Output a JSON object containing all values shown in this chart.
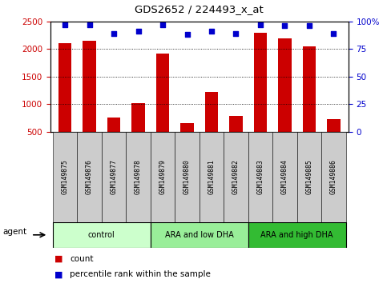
{
  "title": "GDS2652 / 224493_x_at",
  "samples": [
    "GSM149875",
    "GSM149876",
    "GSM149877",
    "GSM149878",
    "GSM149879",
    "GSM149880",
    "GSM149881",
    "GSM149882",
    "GSM149883",
    "GSM149884",
    "GSM149885",
    "GSM149886"
  ],
  "counts": [
    2100,
    2150,
    760,
    1010,
    1920,
    650,
    1220,
    790,
    2290,
    2190,
    2050,
    720
  ],
  "percentile_ranks": [
    97,
    97,
    89,
    91,
    97,
    88,
    91,
    89,
    97,
    96,
    96,
    89
  ],
  "groups": [
    {
      "label": "control",
      "start": 0,
      "end": 3,
      "color": "#ccffcc"
    },
    {
      "label": "ARA and low DHA",
      "start": 4,
      "end": 7,
      "color": "#99ee99"
    },
    {
      "label": "ARA and high DHA",
      "start": 8,
      "end": 11,
      "color": "#33bb33"
    }
  ],
  "bar_color": "#cc0000",
  "dot_color": "#0000cc",
  "ylim_left": [
    500,
    2500
  ],
  "ylim_right": [
    0,
    100
  ],
  "yticks_left": [
    500,
    1000,
    1500,
    2000,
    2500
  ],
  "yticks_right": [
    0,
    25,
    50,
    75,
    100
  ],
  "ytick_labels_right": [
    "0",
    "25",
    "50",
    "75",
    "100%"
  ],
  "bg_color": "#ffffff",
  "tick_bg_color": "#cccccc",
  "agent_label": "agent",
  "legend_count": "count",
  "legend_percentile": "percentile rank within the sample",
  "n": 12
}
